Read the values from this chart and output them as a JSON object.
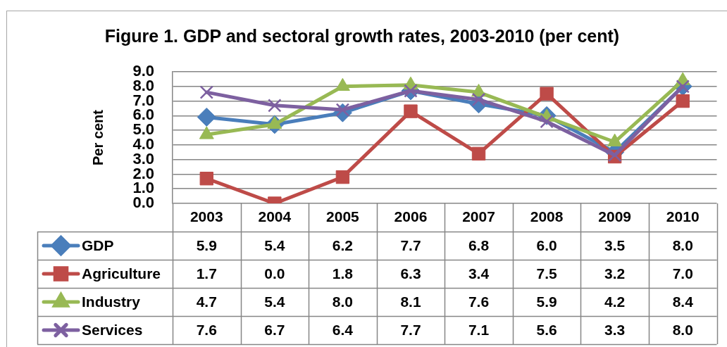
{
  "chart_data": {
    "type": "line",
    "title": "Figure 1. GDP and sectoral growth rates, 2003-2010 (per cent)",
    "ylabel": "Per cent",
    "categories": [
      "2003",
      "2004",
      "2005",
      "2006",
      "2007",
      "2008",
      "2009",
      "2010"
    ],
    "series": [
      {
        "name": "GDP",
        "color": "#4a7ebb",
        "marker": "diamond",
        "values": [
          5.9,
          5.4,
          6.2,
          7.7,
          6.8,
          6.0,
          3.5,
          8.0
        ],
        "value_labels": [
          "5.9",
          "5.4",
          "6.2",
          "7.7",
          "6.8",
          "6.0",
          "3.5",
          "8.0"
        ]
      },
      {
        "name": "Agriculture",
        "color": "#be4b48",
        "marker": "square",
        "values": [
          1.7,
          0.0,
          1.8,
          6.3,
          3.4,
          7.5,
          3.2,
          7.0
        ],
        "value_labels": [
          "1.7",
          "0.0",
          "1.8",
          "6.3",
          "3.4",
          "7.5",
          "3.2",
          "7.0"
        ]
      },
      {
        "name": "Industry",
        "color": "#98b954",
        "marker": "triangle",
        "values": [
          4.7,
          5.4,
          8.0,
          8.1,
          7.6,
          5.9,
          4.2,
          8.4
        ],
        "value_labels": [
          "4.7",
          "5.4",
          "8.0",
          "8.1",
          "7.6",
          "5.9",
          "4.2",
          "8.4"
        ]
      },
      {
        "name": "Services",
        "color": "#7d60a0",
        "marker": "cross",
        "values": [
          7.6,
          6.7,
          6.4,
          7.7,
          7.1,
          5.6,
          3.3,
          8.0
        ],
        "value_labels": [
          "7.6",
          "6.7",
          "6.4",
          "7.7",
          "7.1",
          "5.6",
          "3.3",
          "8.0"
        ]
      }
    ],
    "ylim": [
      0,
      9
    ],
    "yticks": [
      {
        "value": 0,
        "label": "0.0"
      },
      {
        "value": 1,
        "label": "1.0"
      },
      {
        "value": 2,
        "label": "2.0"
      },
      {
        "value": 3,
        "label": "3.0"
      },
      {
        "value": 4,
        "label": "4.0"
      },
      {
        "value": 5,
        "label": "5.0"
      },
      {
        "value": 6,
        "label": "6.0"
      },
      {
        "value": 7,
        "label": "7.0"
      },
      {
        "value": 8,
        "label": "8.0"
      },
      {
        "value": 9,
        "label": "9.0"
      }
    ],
    "grid": "y",
    "legend": "bottom",
    "line_style": "solid"
  }
}
